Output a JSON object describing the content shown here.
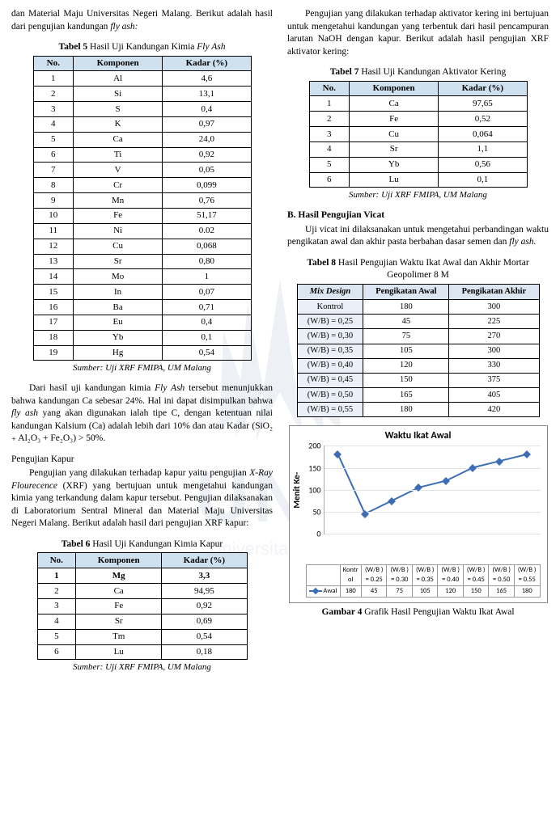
{
  "left": {
    "intro": "dan Material Maju Universitas Negeri Malang. Berikut adalah hasil dari pengujian kandungan ",
    "intro_ital": "fly ash:",
    "t5_caption_a": "Tabel 5 ",
    "t5_caption_b": "Hasil Uji Kandungan Kimia ",
    "t5_caption_c": "Fly Ash",
    "t5_headers": [
      "No.",
      "Komponen",
      "Kadar (%)"
    ],
    "t5_rows": [
      [
        "1",
        "Al",
        "4,6"
      ],
      [
        "2",
        "Si",
        "13,1"
      ],
      [
        "3",
        "S",
        "0,4"
      ],
      [
        "4",
        "K",
        "0,97"
      ],
      [
        "5",
        "Ca",
        "24,0"
      ],
      [
        "6",
        "Ti",
        "0,92"
      ],
      [
        "7",
        "V",
        "0,05"
      ],
      [
        "8",
        "Cr",
        "0,099"
      ],
      [
        "9",
        "Mn",
        "0,76"
      ],
      [
        "10",
        "Fe",
        "51,17"
      ],
      [
        "11",
        "Ni",
        "0.02"
      ],
      [
        "12",
        "Cu",
        "0,068"
      ],
      [
        "13",
        "Sr",
        "0,80"
      ],
      [
        "14",
        "Mo",
        "1"
      ],
      [
        "15",
        "In",
        "0,07"
      ],
      [
        "16",
        "Ba",
        "0,71"
      ],
      [
        "17",
        "Eu",
        "0,4"
      ],
      [
        "18",
        "Yb",
        "0,1"
      ],
      [
        "19",
        "Hg",
        "0,54"
      ]
    ],
    "t5_source": "Sumber: Uji XRF FMIPA, UM Malang",
    "para1_a": "Dari hasil uji kandungan kimia ",
    "para1_b": "Fly Ash",
    "para1_c": " tersebut menunjukkan bahwa kandungan Ca sebesar 24%. Hal ini dapat disimpulkan bahwa ",
    "para1_d": "fly ash",
    "para1_e": " yang akan digunakan ialah tipe C, dengan ketentuan nilai kandungan Kalsium (Ca) adalah lebih dari 10% dan atau Kadar (SiO₂ ₊ Al₂O₃ + Fe₂O₃) > 50%.",
    "kapur_head": "Pengujian Kapur",
    "kapur_para_a": "Pengujian yang dilakukan terhadap kapur yaitu pengujian ",
    "kapur_para_b": "X-Ray Flourecence",
    "kapur_para_c": " (XRF) yang bertujuan untuk mengetahui kandungan kimia yang terkandung dalam kapur tersebut. Pengujian dilaksanakan di Laboratorium Sentral Mineral dan Material Maju Universitas Negeri Malang. Berikut adalah hasil dari pengujian XRF kapur:",
    "t6_caption_a": "Tabel 6 ",
    "t6_caption_b": "Hasil Uji Kandungan Kimia Kapur",
    "t6_headers": [
      "No.",
      "Komponen",
      "Kadar (%)"
    ],
    "t6_rows": [
      [
        "1",
        "Mg",
        "3,3"
      ],
      [
        "2",
        "Ca",
        "94,95"
      ],
      [
        "3",
        "Fe",
        "0,92"
      ],
      [
        "4",
        "Sr",
        "0,69"
      ],
      [
        "5",
        "Tm",
        "0,54"
      ],
      [
        "6",
        "Lu",
        "0,18"
      ]
    ],
    "t6_source": "Sumber: Uji XRF FMIPA, UM Malang"
  },
  "right": {
    "para_top": "Pengujian yang dilakukan terhadap aktivator kering ini bertujuan untuk mengetahui kandungan yang terbentuk dari hasil pencampuran larutan NaOH dengan kapur. Berikut adalah hasil pengujian XRF aktivator kering:",
    "t7_caption_a": "Tabel 7 ",
    "t7_caption_b": "Hasil Uji Kandungan Aktivator Kering",
    "t7_headers": [
      "No.",
      "Komponen",
      "Kadar (%)"
    ],
    "t7_rows": [
      [
        "1",
        "Ca",
        "97,65"
      ],
      [
        "2",
        "Fe",
        "0,52"
      ],
      [
        "3",
        "Cu",
        "0,064"
      ],
      [
        "4",
        "Sr",
        "1,1"
      ],
      [
        "5",
        "Yb",
        "0,56"
      ],
      [
        "6",
        "Lu",
        "0,1"
      ]
    ],
    "t7_source": "Sumber: Uji XRF FMIPA, UM Malang",
    "sectionB": "B.  Hasil Pengujian Vicat",
    "vicat_para_a": "Uji vicat ini dilaksanakan untuk mengetahui perbandingan waktu pengikatan awal dan akhir pasta berbahan dasar semen dan ",
    "vicat_para_b": "fly ash.",
    "t8_caption_a": "Tabel 8 ",
    "t8_caption_b": "Hasil Pengujian Waktu Ikat Awal dan Akhir Mortar Geopolimer 8 M",
    "t8_headers": [
      "Mix Design",
      "Pengikatan Awal",
      "Pengikatan Akhir"
    ],
    "t8_rows": [
      [
        "Kontrol",
        "180",
        "300"
      ],
      [
        "(W/B) = 0,25",
        "45",
        "225"
      ],
      [
        "(W/B) = 0,30",
        "75",
        "270"
      ],
      [
        "(W/B) = 0,35",
        "105",
        "300"
      ],
      [
        "(W/B) = 0,40",
        "120",
        "330"
      ],
      [
        "(W/B) = 0,45",
        "150",
        "375"
      ],
      [
        "(W/B) = 0,50",
        "165",
        "405"
      ],
      [
        "(W/B) = 0,55",
        "180",
        "420"
      ]
    ],
    "chart": {
      "type": "line",
      "title": "Waktu Ikat Awal",
      "ylabel": "Menit Ke-",
      "categories": [
        "Kontrol",
        "(W/B) = 0.25",
        "(W/B) = 0.30",
        "(W/B) = 0.35",
        "(W/B) = 0.40",
        "(W/B) = 0.45",
        "(W/B) = 0.50",
        "(W/B) = 0.55"
      ],
      "cat_short_top": [
        "Kontr ol",
        "(W/B ) = 0.25",
        "(W/B ) = 0.30",
        "(W/B ) = 0.35",
        "(W/B ) = 0.40",
        "(W/B ) = 0.45",
        "(W/B ) = 0.50",
        "(W/B ) = 0.55"
      ],
      "series_name": "Awal",
      "values": [
        180,
        45,
        75,
        105,
        120,
        150,
        165,
        180
      ],
      "ylim": [
        0,
        200
      ],
      "yticks": [
        0,
        50,
        100,
        150,
        200
      ],
      "line_color": "#3e6db5",
      "marker": "diamond",
      "grid_color": "#e4e4e4",
      "background_color": "#ffffff",
      "title_fontsize": 12,
      "label_fontsize": 11
    },
    "fig4_caption_a": "Gambar 4  ",
    "fig4_caption_b": "Grafik Hasil Pengujian Waktu Ikat Awal"
  }
}
